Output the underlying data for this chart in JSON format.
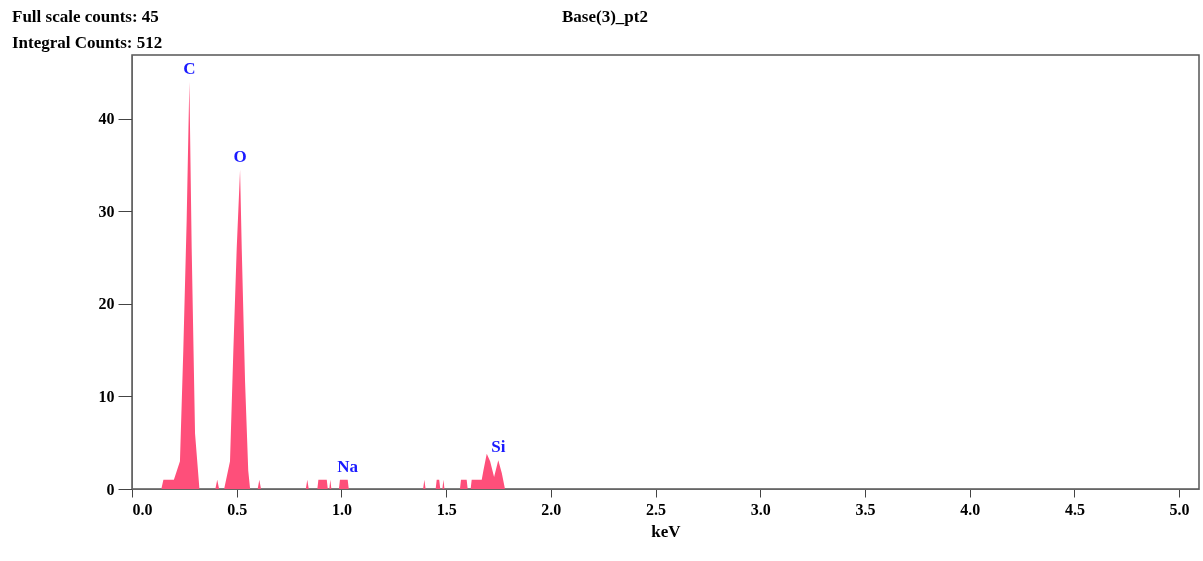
{
  "chart_data": {
    "type": "area",
    "title": "Base(3)_pt2",
    "xlabel": "keV",
    "annotations": [
      "Full scale counts: 45",
      "Integral Counts: 512",
      {
        "text": "C",
        "x": 0.274,
        "y": 44
      },
      {
        "text": "O",
        "x": 0.516,
        "y": 34.5
      },
      {
        "text": "Na",
        "x": 1.03,
        "y": 1
      },
      {
        "text": "Si",
        "x": 1.749,
        "y": 3.1
      }
    ],
    "x": [
      0,
      0.14,
      0.15,
      0.2,
      0.213,
      0.229,
      0.245,
      0.261,
      0.274,
      0.285,
      0.301,
      0.322,
      0.398,
      0.407,
      0.416,
      0.44,
      0.468,
      0.484,
      0.5,
      0.516,
      0.524,
      0.54,
      0.555,
      0.564,
      0.6,
      0.608,
      0.616,
      0.83,
      0.837,
      0.844,
      0.885,
      0.89,
      0.93,
      0.935,
      0.942,
      0.947,
      0.952,
      0.988,
      0.993,
      1.03,
      1.035,
      1.39,
      1.396,
      1.402,
      1.45,
      1.455,
      1.467,
      1.472,
      1.482,
      1.487,
      1.492,
      1.566,
      1.571,
      1.598,
      1.603,
      1.617,
      1.622,
      1.67,
      1.678,
      1.694,
      1.71,
      1.729,
      1.749,
      1.766,
      1.781,
      5.095
    ],
    "series": [
      {
        "color": "#fe4f7a",
        "values": [
          0,
          0,
          1,
          1,
          1.9,
          3,
          15,
          29,
          44,
          26,
          6,
          0,
          0,
          1,
          0,
          0,
          3,
          15,
          26,
          34.5,
          26,
          11.5,
          2,
          0,
          0,
          1,
          0,
          0,
          1,
          0,
          0,
          1,
          1,
          0,
          0,
          1,
          0,
          0,
          1,
          1,
          0,
          0,
          1,
          0,
          0,
          1,
          1,
          0,
          0,
          1,
          0,
          0,
          1,
          1,
          0,
          0,
          1,
          1,
          2,
          3.8,
          3,
          1.3,
          3.1,
          1.7,
          0,
          0
        ]
      }
    ],
    "xlim": [
      0,
      5.095
    ],
    "xticks": [
      {
        "value": 0,
        "label": "0.0"
      },
      {
        "value": 0.5,
        "label": "0.5"
      },
      {
        "value": 1,
        "label": "1.0"
      },
      {
        "value": 1.5,
        "label": "1.5"
      },
      {
        "value": 2,
        "label": "2.0"
      },
      {
        "value": 2.5,
        "label": "2.5"
      },
      {
        "value": 3,
        "label": "3.0"
      },
      {
        "value": 3.5,
        "label": "3.5"
      },
      {
        "value": 4,
        "label": "4.0"
      },
      {
        "value": 4.5,
        "label": "4.5"
      },
      {
        "value": 5,
        "label": "5.0"
      }
    ],
    "ylim": [
      0,
      46.9
    ],
    "yticks": [
      0,
      10,
      20,
      30,
      40
    ],
    "grid": false
  }
}
